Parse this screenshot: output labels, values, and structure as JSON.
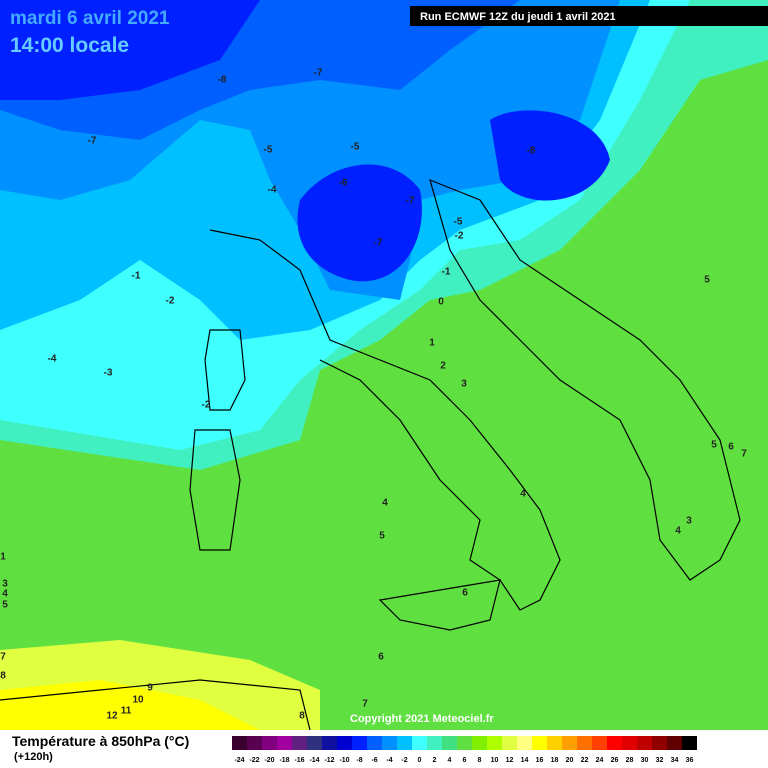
{
  "header": {
    "date": "mardi 6 avril 2021",
    "time": "14:00 locale"
  },
  "run": "Run ECMWF 12Z du jeudi 1 avril 2021",
  "copyright": "Copyright 2021 Meteociel.fr",
  "footer": {
    "title": "Température à 850hPa (°C)",
    "lead": "(+120h)"
  },
  "colorbar": {
    "labels": [
      "-24",
      "-22",
      "-20",
      "-18",
      "-16",
      "-14",
      "-12",
      "-10",
      "-8",
      "-6",
      "-4",
      "-2",
      "0",
      "2",
      "4",
      "6",
      "8",
      "10",
      "12",
      "14",
      "16",
      "18",
      "20",
      "22",
      "24",
      "26",
      "28",
      "30",
      "32",
      "34",
      "36"
    ],
    "colors": [
      "#3a0030",
      "#5a0050",
      "#800080",
      "#a000a0",
      "#602080",
      "#303080",
      "#1010a0",
      "#0000d0",
      "#0020ff",
      "#0060ff",
      "#0090ff",
      "#00c0ff",
      "#40ffff",
      "#40f0c0",
      "#40e080",
      "#60e040",
      "#80f000",
      "#b0ff00",
      "#e0ff40",
      "#ffff80",
      "#ffff00",
      "#ffd000",
      "#ffa000",
      "#ff7000",
      "#ff4000",
      "#ff0000",
      "#e00000",
      "#c00000",
      "#900000",
      "#600000",
      "#000000"
    ]
  },
  "contour_labels": [
    "-8",
    "-7",
    "-7",
    "-5",
    "-5",
    "-6",
    "-4",
    "-7",
    "-7",
    "-8",
    "-5",
    "-2",
    "-1",
    "-1",
    "-2",
    "0",
    "1",
    "2",
    "3",
    "-4",
    "-3",
    "-2",
    "4",
    "5",
    "4",
    "3",
    "4",
    "5",
    "5",
    "6",
    "7",
    "6",
    "6",
    "7",
    "8",
    "9",
    "10",
    "11",
    "12",
    "1",
    "3",
    "4",
    "5",
    "7",
    "8"
  ]
}
